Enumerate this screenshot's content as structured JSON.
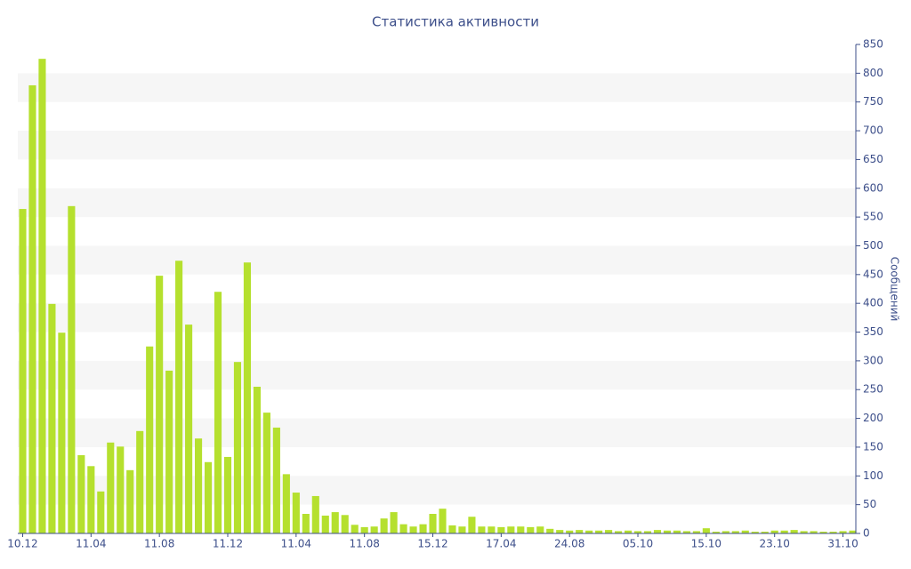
{
  "chart_data": {
    "type": "bar",
    "title": "Статистика активности",
    "y_label": "Сообщений",
    "categories": [
      "10.12",
      null,
      null,
      null,
      null,
      null,
      null,
      "11.04",
      null,
      null,
      null,
      null,
      null,
      null,
      "11.08",
      null,
      null,
      null,
      null,
      null,
      null,
      "11.12",
      null,
      null,
      null,
      null,
      null,
      null,
      "11.04",
      null,
      null,
      null,
      null,
      null,
      null,
      "11.08",
      null,
      null,
      null,
      null,
      null,
      null,
      "15.12",
      null,
      null,
      null,
      null,
      null,
      null,
      "17.04",
      null,
      null,
      null,
      null,
      null,
      null,
      "24.08",
      null,
      null,
      null,
      null,
      null,
      null,
      "05.10",
      null,
      null,
      null,
      null,
      null,
      null,
      "15.10",
      null,
      null,
      null,
      null,
      null,
      null,
      "23.10",
      null,
      null,
      null,
      null,
      null,
      null,
      "31.10",
      null
    ],
    "values": [
      564,
      779,
      825,
      399,
      349,
      569,
      136,
      117,
      73,
      158,
      151,
      110,
      178,
      325,
      448,
      283,
      474,
      363,
      165,
      124,
      420,
      133,
      298,
      471,
      255,
      210,
      184,
      103,
      71,
      34,
      65,
      31,
      37,
      32,
      15,
      11,
      12,
      26,
      37,
      16,
      12,
      16,
      34,
      43,
      14,
      12,
      29,
      12,
      12,
      11,
      12,
      12,
      11,
      12,
      8,
      6,
      5,
      6,
      5,
      5,
      6,
      4,
      5,
      4,
      4,
      6,
      5,
      5,
      4,
      4,
      9,
      3,
      4,
      4,
      5,
      3,
      3,
      5,
      5,
      6,
      4,
      4,
      3,
      3,
      4,
      5
    ],
    "color": "#b5e02e",
    "ylim": [
      0,
      850
    ],
    "yticks": [
      0,
      50,
      100,
      150,
      200,
      250,
      300,
      350,
      400,
      450,
      500,
      550,
      600,
      650,
      700,
      750,
      800,
      850
    ],
    "grid": "bands",
    "y_axis_side": "right"
  }
}
